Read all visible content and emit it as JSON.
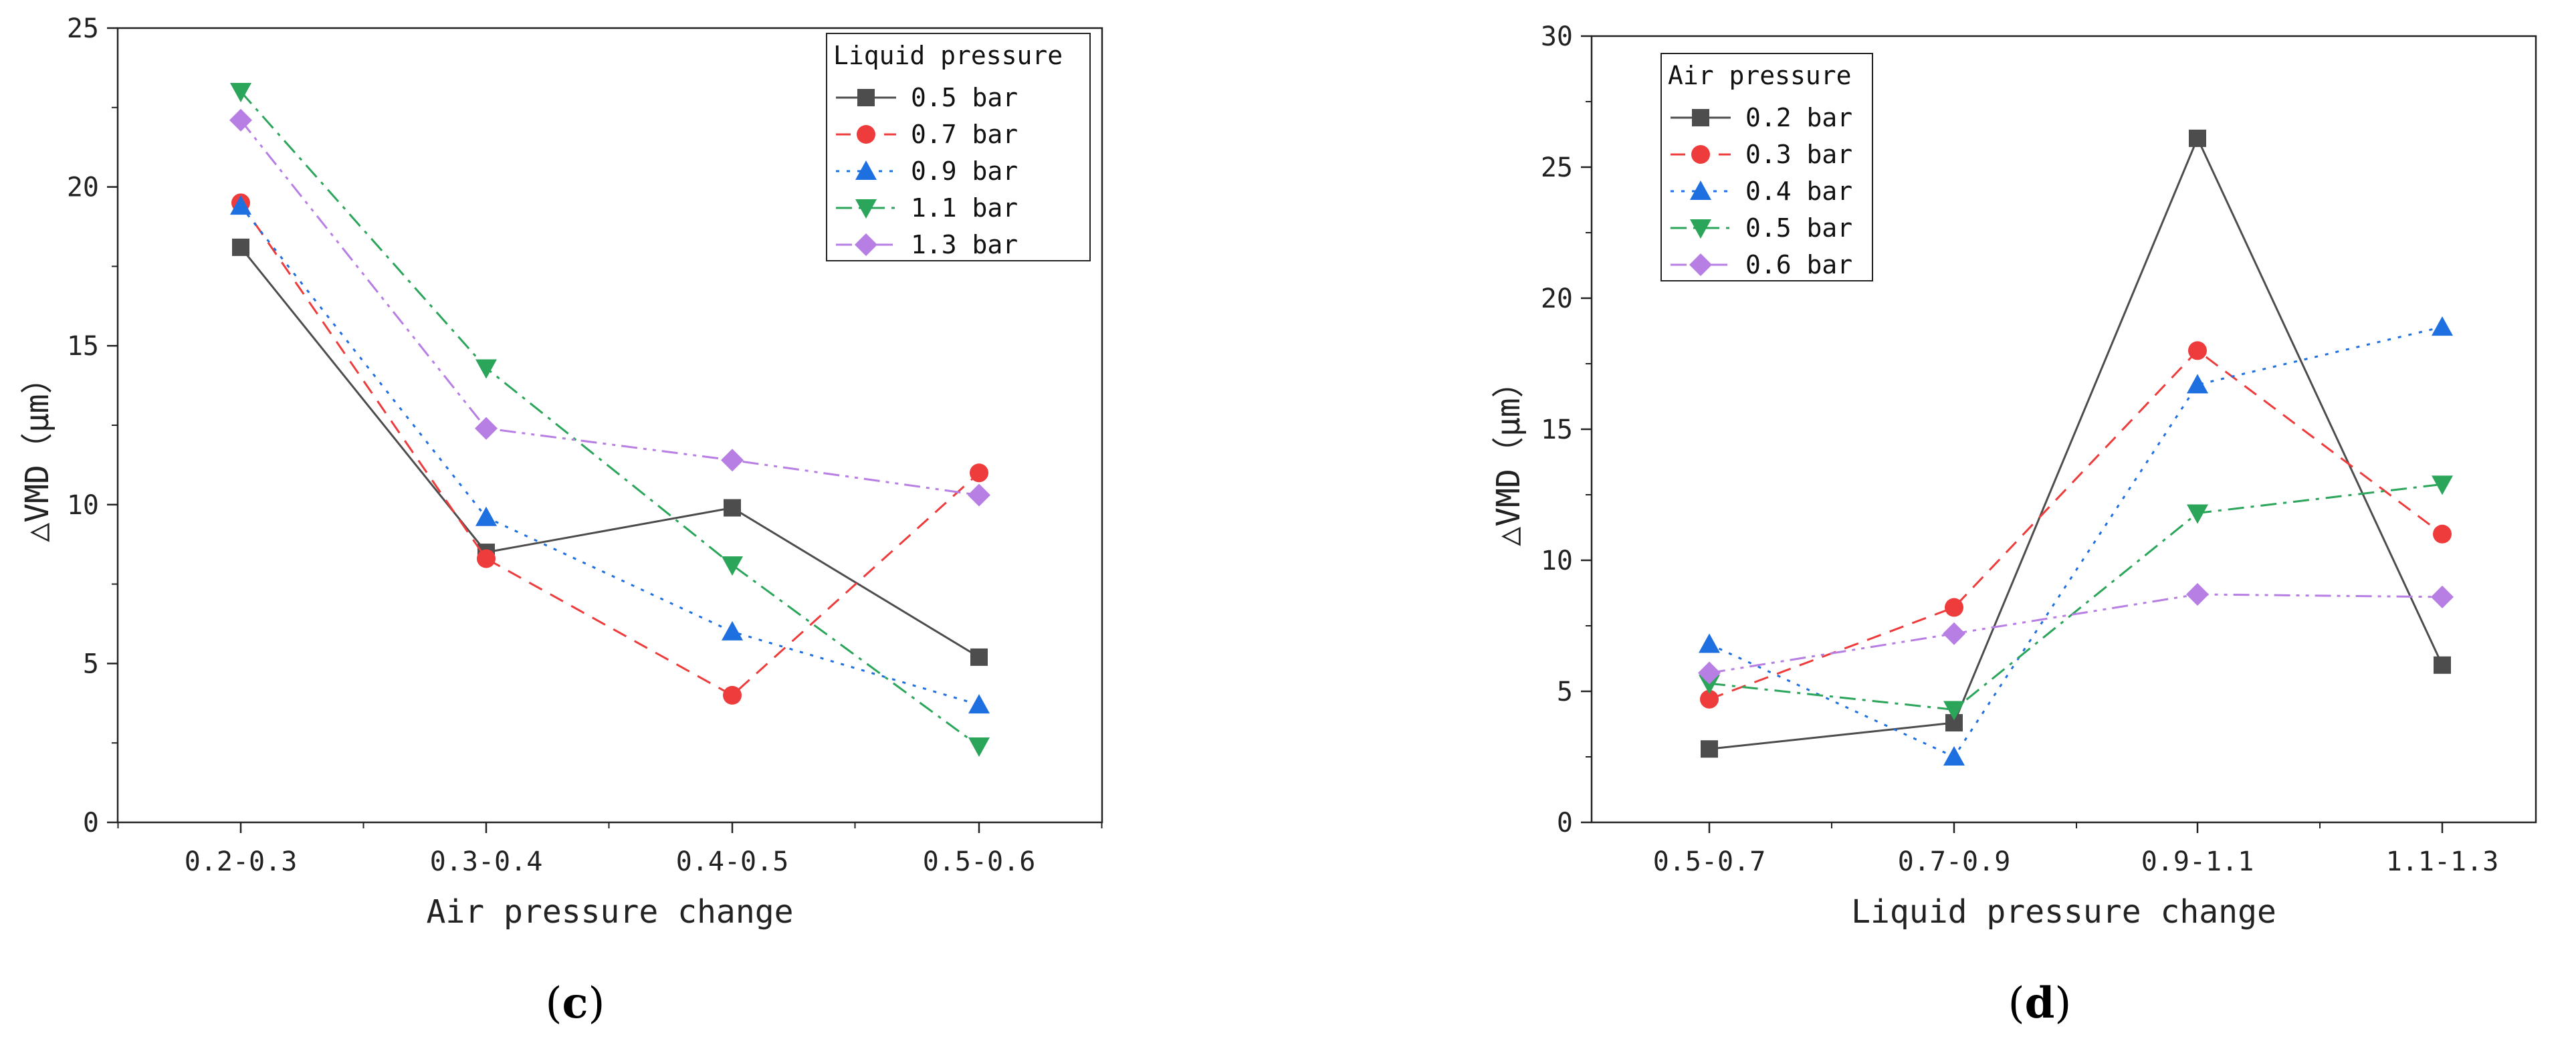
{
  "chart_data": [
    {
      "type": "line",
      "panel_label": "(c)",
      "panel_letter": "c",
      "title": "",
      "xlabel": "Air pressure change",
      "ylabel": "△VMD（μm）",
      "categories": [
        "0.2-0.3",
        "0.3-0.4",
        "0.4-0.5",
        "0.5-0.6"
      ],
      "ylim": [
        0,
        25
      ],
      "yticks": [
        0,
        5,
        10,
        15,
        20,
        25
      ],
      "grid": false,
      "legend_title": "Liquid pressure",
      "legend_position": "top-right",
      "series": [
        {
          "name": "0.5 bar",
          "values": [
            18.1,
            8.5,
            9.9,
            5.2
          ],
          "color": "#4d4d4d",
          "marker": "square",
          "dash": "solid"
        },
        {
          "name": "0.7 bar",
          "values": [
            19.5,
            8.3,
            4.0,
            11.0
          ],
          "color": "#ee3b3b",
          "marker": "circle",
          "dash": "dashed"
        },
        {
          "name": "0.9 bar",
          "values": [
            19.4,
            9.6,
            6.0,
            3.7
          ],
          "color": "#1e6fe0",
          "marker": "triangle-up",
          "dash": "dotted"
        },
        {
          "name": "1.1 bar",
          "values": [
            23.0,
            14.3,
            8.1,
            2.4
          ],
          "color": "#2aa55a",
          "marker": "triangle-down",
          "dash": "dashdot"
        },
        {
          "name": "1.3 bar",
          "values": [
            22.1,
            12.4,
            11.4,
            10.3
          ],
          "color": "#b77ee3",
          "marker": "diamond",
          "dash": "dashdotdot"
        }
      ]
    },
    {
      "type": "line",
      "panel_label": "(d)",
      "panel_letter": "d",
      "title": "",
      "xlabel": "Liquid pressure change",
      "ylabel": "△VMD（μm）",
      "categories": [
        "0.5-0.7",
        "0.7-0.9",
        "0.9-1.1",
        "1.1-1.3"
      ],
      "ylim": [
        0,
        30
      ],
      "yticks": [
        0,
        5,
        10,
        15,
        20,
        25,
        30
      ],
      "grid": false,
      "legend_title": "Air pressure",
      "legend_position": "top-left",
      "series": [
        {
          "name": "0.2 bar",
          "values": [
            2.8,
            3.8,
            26.1,
            6.0
          ],
          "color": "#4d4d4d",
          "marker": "square",
          "dash": "solid"
        },
        {
          "name": "0.3 bar",
          "values": [
            4.7,
            8.2,
            18.0,
            11.0
          ],
          "color": "#ee3b3b",
          "marker": "circle",
          "dash": "dashed"
        },
        {
          "name": "0.4 bar",
          "values": [
            6.8,
            2.5,
            16.7,
            18.9
          ],
          "color": "#1e6fe0",
          "marker": "triangle-up",
          "dash": "dotted"
        },
        {
          "name": "0.5 bar",
          "values": [
            5.3,
            4.3,
            11.8,
            12.9
          ],
          "color": "#2aa55a",
          "marker": "triangle-down",
          "dash": "dashdot"
        },
        {
          "name": "0.6 bar",
          "values": [
            5.7,
            7.2,
            8.7,
            8.6
          ],
          "color": "#b77ee3",
          "marker": "diamond",
          "dash": "dashdotdot"
        }
      ]
    }
  ]
}
